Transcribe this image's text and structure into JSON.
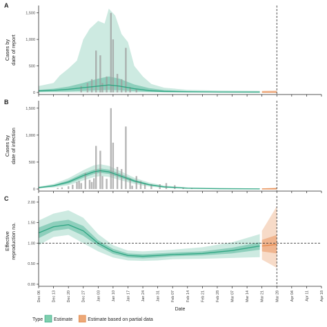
{
  "colors": {
    "estimate": "#1b9e77",
    "partial": "#e6874a",
    "bars": "#9e9e9e",
    "axis": "#222222"
  },
  "legend": {
    "title": "Type",
    "items": [
      {
        "label": "Estimate",
        "color": "#7fcfae"
      },
      {
        "label": "Estimate based on partial data",
        "color": "#eda877"
      }
    ]
  },
  "chart_data": [
    {
      "type": "line",
      "panel": "A",
      "ylabel_line1": "Cases by",
      "ylabel_line2": "date of report",
      "xlabel": "",
      "ylim": [
        0,
        1600
      ],
      "yticks": [
        0,
        500,
        1000,
        1500
      ],
      "ytick_labels": [
        "0",
        "500",
        "1,000",
        "1,500"
      ],
      "bars": [
        {
          "x": "2020-12-26",
          "y": 120
        },
        {
          "x": "2020-12-29",
          "y": 180
        },
        {
          "x": "2020-12-31",
          "y": 250
        },
        {
          "x": "2021-01-02",
          "y": 790
        },
        {
          "x": "2021-01-04",
          "y": 700
        },
        {
          "x": "2021-01-05",
          "y": 180
        },
        {
          "x": "2021-01-07",
          "y": 300
        },
        {
          "x": "2021-01-09",
          "y": 1500
        },
        {
          "x": "2021-01-10",
          "y": 1000
        },
        {
          "x": "2021-01-12",
          "y": 350
        },
        {
          "x": "2021-01-14",
          "y": 250
        },
        {
          "x": "2021-01-16",
          "y": 840
        },
        {
          "x": "2021-01-18",
          "y": 100
        },
        {
          "x": "2021-01-21",
          "y": 60
        }
      ],
      "median": [
        [
          "2020-12-06",
          30
        ],
        [
          "2020-12-13",
          40
        ],
        [
          "2020-12-20",
          60
        ],
        [
          "2020-12-27",
          90
        ],
        [
          "2021-01-03",
          120
        ],
        [
          "2021-01-08",
          140
        ],
        [
          "2021-01-13",
          120
        ],
        [
          "2021-01-20",
          70
        ],
        [
          "2021-01-27",
          35
        ],
        [
          "2021-02-03",
          20
        ],
        [
          "2021-02-14",
          12
        ],
        [
          "2021-03-01",
          8
        ],
        [
          "2021-03-20",
          6
        ]
      ],
      "band_inner": [
        [
          "2020-12-06",
          10,
          50
        ],
        [
          "2020-12-13",
          15,
          70
        ],
        [
          "2020-12-20",
          20,
          110
        ],
        [
          "2020-12-27",
          30,
          180
        ],
        [
          "2021-01-03",
          40,
          260
        ],
        [
          "2021-01-08",
          45,
          300
        ],
        [
          "2021-01-13",
          40,
          260
        ],
        [
          "2021-01-20",
          25,
          150
        ],
        [
          "2021-01-27",
          12,
          80
        ],
        [
          "2021-02-03",
          6,
          45
        ],
        [
          "2021-02-14",
          3,
          25
        ],
        [
          "2021-03-01",
          2,
          18
        ],
        [
          "2021-03-20",
          1,
          15
        ]
      ],
      "band_outer": [
        [
          "2020-12-06",
          0,
          120
        ],
        [
          "2020-12-13",
          0,
          180
        ],
        [
          "2020-12-16",
          0,
          320
        ],
        [
          "2020-12-20",
          0,
          450
        ],
        [
          "2020-12-24",
          0,
          600
        ],
        [
          "2020-12-27",
          0,
          1000
        ],
        [
          "2020-12-30",
          0,
          1200
        ],
        [
          "2021-01-03",
          0,
          1350
        ],
        [
          "2021-01-06",
          0,
          1300
        ],
        [
          "2021-01-08",
          0,
          1580
        ],
        [
          "2021-01-11",
          0,
          1450
        ],
        [
          "2021-01-14",
          0,
          1100
        ],
        [
          "2021-01-17",
          0,
          950
        ],
        [
          "2021-01-20",
          0,
          500
        ],
        [
          "2021-01-24",
          0,
          300
        ],
        [
          "2021-01-28",
          0,
          160
        ],
        [
          "2021-02-03",
          0,
          90
        ],
        [
          "2021-02-14",
          0,
          50
        ],
        [
          "2021-03-01",
          0,
          35
        ],
        [
          "2021-03-20",
          0,
          30
        ]
      ],
      "partial": {
        "median": [
          [
            "2021-03-21",
            6
          ],
          [
            "2021-03-28",
            6
          ]
        ],
        "band": [
          [
            "2021-03-21",
            0,
            30
          ],
          [
            "2021-03-28",
            0,
            35
          ]
        ]
      }
    },
    {
      "type": "line",
      "panel": "B",
      "ylabel_line1": "Cases by",
      "ylabel_line2": "date of infection",
      "xlabel": "",
      "ylim": [
        0,
        1600
      ],
      "yticks": [
        0,
        500,
        1000,
        1500
      ],
      "ytick_labels": [
        "0",
        "500",
        "1,000",
        "1,500"
      ],
      "bars": [
        {
          "x": "2020-12-15",
          "y": 20
        },
        {
          "x": "2020-12-17",
          "y": 30
        },
        {
          "x": "2020-12-20",
          "y": 50
        },
        {
          "x": "2020-12-22",
          "y": 80
        },
        {
          "x": "2020-12-24",
          "y": 130
        },
        {
          "x": "2020-12-25",
          "y": 150
        },
        {
          "x": "2020-12-26",
          "y": 110
        },
        {
          "x": "2020-12-28",
          "y": 300
        },
        {
          "x": "2020-12-30",
          "y": 170
        },
        {
          "x": "2020-12-31",
          "y": 130
        },
        {
          "x": "2021-01-01",
          "y": 200
        },
        {
          "x": "2021-01-02",
          "y": 800
        },
        {
          "x": "2021-01-04",
          "y": 710
        },
        {
          "x": "2021-01-05",
          "y": 240
        },
        {
          "x": "2021-01-07",
          "y": 190
        },
        {
          "x": "2021-01-09",
          "y": 1500
        },
        {
          "x": "2021-01-10",
          "y": 860
        },
        {
          "x": "2021-01-12",
          "y": 410
        },
        {
          "x": "2021-01-14",
          "y": 370
        },
        {
          "x": "2021-01-16",
          "y": 1160
        },
        {
          "x": "2021-01-18",
          "y": 200
        },
        {
          "x": "2021-01-19",
          "y": 60
        },
        {
          "x": "2021-01-21",
          "y": 240
        },
        {
          "x": "2021-01-23",
          "y": 150
        },
        {
          "x": "2021-01-25",
          "y": 100
        },
        {
          "x": "2021-01-28",
          "y": 90
        },
        {
          "x": "2021-02-01",
          "y": 90
        },
        {
          "x": "2021-02-04",
          "y": 110
        },
        {
          "x": "2021-02-08",
          "y": 70
        },
        {
          "x": "2021-02-12",
          "y": 30
        },
        {
          "x": "2021-02-16",
          "y": 20
        }
      ],
      "median": [
        [
          "2020-12-06",
          25
        ],
        [
          "2020-12-13",
          60
        ],
        [
          "2020-12-20",
          130
        ],
        [
          "2020-12-27",
          250
        ],
        [
          "2021-01-01",
          320
        ],
        [
          "2021-01-04",
          340
        ],
        [
          "2021-01-08",
          320
        ],
        [
          "2021-01-13",
          250
        ],
        [
          "2021-01-20",
          150
        ],
        [
          "2021-01-27",
          80
        ],
        [
          "2021-02-03",
          40
        ],
        [
          "2021-02-14",
          15
        ],
        [
          "2021-03-01",
          6
        ],
        [
          "2021-03-20",
          3
        ]
      ],
      "band_inner": [
        [
          "2020-12-06",
          18,
          33
        ],
        [
          "2020-12-13",
          45,
          75
        ],
        [
          "2020-12-20",
          100,
          160
        ],
        [
          "2020-12-27",
          210,
          290
        ],
        [
          "2021-01-01",
          280,
          360
        ],
        [
          "2021-01-04",
          300,
          380
        ],
        [
          "2021-01-08",
          280,
          360
        ],
        [
          "2021-01-13",
          215,
          290
        ],
        [
          "2021-01-20",
          125,
          175
        ],
        [
          "2021-01-27",
          65,
          95
        ],
        [
          "2021-02-03",
          30,
          50
        ],
        [
          "2021-02-14",
          10,
          20
        ],
        [
          "2021-03-01",
          4,
          9
        ],
        [
          "2021-03-20",
          2,
          5
        ]
      ],
      "band_outer": [
        [
          "2020-12-06",
          10,
          45
        ],
        [
          "2020-12-13",
          30,
          95
        ],
        [
          "2020-12-20",
          70,
          200
        ],
        [
          "2020-12-27",
          160,
          350
        ],
        [
          "2021-01-01",
          220,
          440
        ],
        [
          "2021-01-04",
          240,
          460
        ],
        [
          "2021-01-08",
          225,
          430
        ],
        [
          "2021-01-13",
          170,
          340
        ],
        [
          "2021-01-20",
          95,
          210
        ],
        [
          "2021-01-27",
          45,
          120
        ],
        [
          "2021-02-03",
          20,
          65
        ],
        [
          "2021-02-14",
          6,
          28
        ],
        [
          "2021-03-01",
          2,
          14
        ],
        [
          "2021-03-20",
          1,
          9
        ]
      ],
      "partial": {
        "median": [
          [
            "2021-03-21",
            3
          ],
          [
            "2021-03-28",
            3
          ]
        ],
        "band": [
          [
            "2021-03-21",
            0,
            9
          ],
          [
            "2021-03-28",
            0,
            30
          ]
        ]
      }
    },
    {
      "type": "line",
      "panel": "C",
      "ylabel_line1": "Effective",
      "ylabel_line2": "reproduction no.",
      "xlabel": "Date",
      "ylim": [
        0,
        2.1
      ],
      "yticks": [
        0,
        0.5,
        1.0,
        1.5,
        2.0
      ],
      "ytick_labels": [
        "0.00",
        "0.50",
        "1.00",
        "1.50",
        "2.00"
      ],
      "reference_line_y": 1.0,
      "median": [
        [
          "2020-12-06",
          1.25
        ],
        [
          "2020-12-13",
          1.4
        ],
        [
          "2020-12-20",
          1.45
        ],
        [
          "2020-12-27",
          1.3
        ],
        [
          "2021-01-03",
          1.0
        ],
        [
          "2021-01-10",
          0.8
        ],
        [
          "2021-01-17",
          0.7
        ],
        [
          "2021-01-24",
          0.68
        ],
        [
          "2021-01-31",
          0.7
        ],
        [
          "2021-02-07",
          0.72
        ],
        [
          "2021-02-21",
          0.75
        ],
        [
          "2021-03-07",
          0.82
        ],
        [
          "2021-03-20",
          0.93
        ]
      ],
      "band_inner": [
        [
          "2020-12-06",
          1.12,
          1.38
        ],
        [
          "2020-12-13",
          1.3,
          1.52
        ],
        [
          "2020-12-20",
          1.35,
          1.57
        ],
        [
          "2020-12-27",
          1.18,
          1.42
        ],
        [
          "2021-01-03",
          0.93,
          1.07
        ],
        [
          "2021-01-10",
          0.74,
          0.86
        ],
        [
          "2021-01-17",
          0.65,
          0.75
        ],
        [
          "2021-01-24",
          0.63,
          0.73
        ],
        [
          "2021-01-31",
          0.65,
          0.75
        ],
        [
          "2021-02-07",
          0.68,
          0.77
        ],
        [
          "2021-02-21",
          0.7,
          0.8
        ],
        [
          "2021-03-07",
          0.75,
          0.89
        ],
        [
          "2021-03-20",
          0.84,
          1.02
        ]
      ],
      "band_outer": [
        [
          "2020-12-06",
          0.95,
          1.55
        ],
        [
          "2020-12-13",
          1.15,
          1.72
        ],
        [
          "2020-12-20",
          1.2,
          1.8
        ],
        [
          "2020-12-27",
          1.0,
          1.62
        ],
        [
          "2021-01-03",
          0.8,
          1.22
        ],
        [
          "2021-01-10",
          0.65,
          0.95
        ],
        [
          "2021-01-17",
          0.58,
          0.82
        ],
        [
          "2021-01-24",
          0.57,
          0.8
        ],
        [
          "2021-01-31",
          0.58,
          0.82
        ],
        [
          "2021-02-07",
          0.61,
          0.84
        ],
        [
          "2021-02-21",
          0.62,
          0.9
        ],
        [
          "2021-03-07",
          0.64,
          1.02
        ],
        [
          "2021-03-20",
          0.66,
          1.22
        ]
      ],
      "partial": {
        "median": [
          [
            "2021-03-21",
            0.93
          ],
          [
            "2021-03-28",
            0.97
          ]
        ],
        "band_inner": [
          [
            "2021-03-21",
            0.8,
            1.08
          ],
          [
            "2021-03-28",
            0.75,
            1.2
          ]
        ],
        "band_outer": [
          [
            "2021-03-21",
            0.6,
            1.3
          ],
          [
            "2021-03-28",
            0.4,
            1.9
          ]
        ]
      }
    }
  ],
  "x_axis": {
    "label": "Date",
    "domain": [
      "2020-12-06",
      "2021-04-18"
    ],
    "ticks": [
      "2020-12-06",
      "2020-12-13",
      "2020-12-20",
      "2020-12-27",
      "2021-01-03",
      "2021-01-10",
      "2021-01-17",
      "2021-01-24",
      "2021-01-31",
      "2021-02-07",
      "2021-02-14",
      "2021-02-21",
      "2021-02-28",
      "2021-03-07",
      "2021-03-14",
      "2021-03-21",
      "2021-03-28",
      "2021-04-04",
      "2021-04-11",
      "2021-04-18"
    ],
    "tick_labels": [
      "Dec 06",
      "Dec 13",
      "Dec 20",
      "Dec 27",
      "Jan 03",
      "Jan 10",
      "Jan 17",
      "Jan 24",
      "Jan 31",
      "Feb 07",
      "Feb 14",
      "Feb 21",
      "Feb 28",
      "Mar 07",
      "Mar 14",
      "Mar 21",
      "Mar 28",
      "Apr 04",
      "Apr 11",
      "Apr 18"
    ],
    "vertical_reference_date": "2021-03-28"
  }
}
